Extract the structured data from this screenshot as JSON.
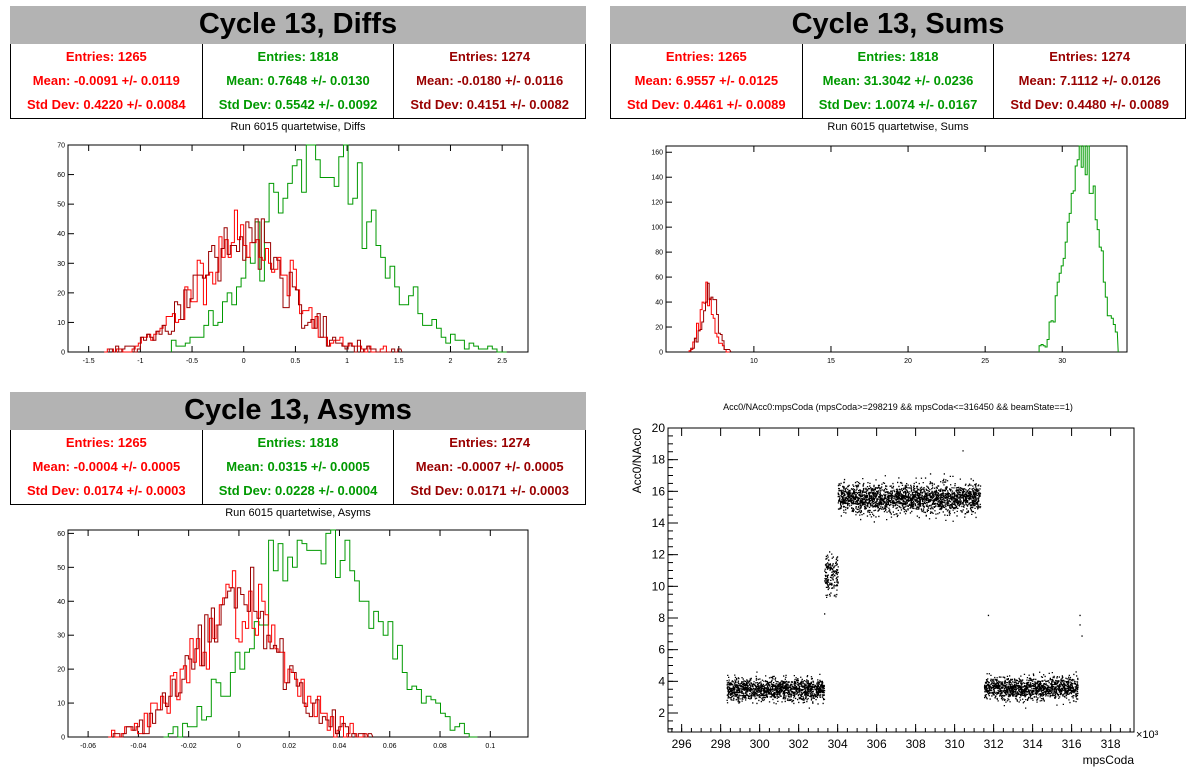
{
  "colors": {
    "red": "#ff0000",
    "green": "#009900",
    "darkred": "#990000",
    "title_bg": "#b3b3b3"
  },
  "panels": {
    "diffs": {
      "title": "Cycle 13, Diffs",
      "subtitle": "Run 6015 quartetwise, Diffs",
      "stats": [
        {
          "entries": "Entries: 1265",
          "mean": "Mean: -0.0091 +/- 0.0119",
          "std": "Std Dev: 0.4220 +/- 0.0084"
        },
        {
          "entries": "Entries: 1818",
          "mean": "Mean: 0.7648 +/- 0.0130",
          "std": "Std Dev: 0.5542 +/- 0.0092"
        },
        {
          "entries": "Entries: 1274",
          "mean": "Mean: -0.0180 +/- 0.0116",
          "std": "Std Dev: 0.4151 +/- 0.0082"
        }
      ]
    },
    "sums": {
      "title": "Cycle 13, Sums",
      "subtitle": "Run 6015 quartetwise, Sums",
      "stats": [
        {
          "entries": "Entries: 1265",
          "mean": "Mean: 6.9557 +/- 0.0125",
          "std": "Std Dev: 0.4461 +/- 0.0089"
        },
        {
          "entries": "Entries: 1818",
          "mean": "Mean: 31.3042 +/- 0.0236",
          "std": "Std Dev: 1.0074 +/- 0.0167"
        },
        {
          "entries": "Entries: 1274",
          "mean": "Mean: 7.1112 +/- 0.0126",
          "std": "Std Dev: 0.4480 +/- 0.0089"
        }
      ]
    },
    "asyms": {
      "title": "Cycle 13, Asyms",
      "subtitle": "Run 6015 quartetwise, Asyms",
      "stats": [
        {
          "entries": "Entries: 1265",
          "mean": "Mean: -0.0004 +/- 0.0005",
          "std": "Std Dev: 0.0174 +/- 0.0003"
        },
        {
          "entries": "Entries: 1818",
          "mean": "Mean: 0.0315 +/- 0.0005",
          "std": "Std Dev: 0.0228 +/- 0.0004"
        },
        {
          "entries": "Entries: 1274",
          "mean": "Mean: -0.0007 +/- 0.0005",
          "std": "Std Dev: 0.0171 +/- 0.0003"
        }
      ]
    },
    "scatter": {
      "title": "Acc0/NAcc0:mpsCoda (mpsCoda>=298219 && mpsCoda<=316450 && beamState==1)"
    }
  },
  "chart_data": [
    {
      "id": "diffs",
      "type": "histogram-overlay",
      "xlim": [
        -1.7,
        2.75
      ],
      "ylim": [
        0,
        70
      ],
      "xticks": [
        -1.5,
        -1,
        -0.5,
        0,
        0.5,
        1,
        1.5,
        2,
        2.5
      ],
      "xtick_labels": [
        "-1.5",
        "-1",
        "-0.5",
        "0",
        "0.5",
        "1",
        "1.5",
        "2",
        "2.5"
      ],
      "yticks": [
        0,
        10,
        20,
        30,
        40,
        50,
        60,
        70
      ],
      "ytick_labels": [
        "0",
        "10",
        "20",
        "30",
        "40",
        "50",
        "60",
        "70"
      ],
      "series": [
        {
          "color": "red",
          "gauss": {
            "mean": -0.0091,
            "std": 0.422,
            "peak": 40,
            "lo": -1.35,
            "hi": 1.4,
            "bin": 0.03
          }
        },
        {
          "color": "green",
          "gauss": {
            "mean": 0.7648,
            "std": 0.5542,
            "peak": 64,
            "lo": -0.7,
            "hi": 2.5,
            "bin": 0.045
          }
        },
        {
          "color": "darkred",
          "gauss": {
            "mean": -0.018,
            "std": 0.4151,
            "peak": 41,
            "lo": -1.3,
            "hi": 1.5,
            "bin": 0.03
          }
        }
      ]
    },
    {
      "id": "sums",
      "type": "histogram-overlay",
      "xlim": [
        4.3,
        34.2
      ],
      "ylim": [
        0,
        165
      ],
      "xticks": [
        10,
        15,
        20,
        25,
        30
      ],
      "xtick_labels": [
        "10",
        "15",
        "20",
        "25",
        "30"
      ],
      "yticks": [
        0,
        20,
        40,
        60,
        80,
        100,
        120,
        140,
        160
      ],
      "ytick_labels": [
        "0",
        "20",
        "40",
        "60",
        "80",
        "100",
        "120",
        "140",
        "160"
      ],
      "series": [
        {
          "color": "red",
          "gauss": {
            "mean": 6.9557,
            "std": 0.4461,
            "peak": 46,
            "lo": 5.8,
            "hi": 8.3,
            "bin": 0.12
          }
        },
        {
          "color": "green",
          "gauss": {
            "mean": 31.3042,
            "std": 1.0074,
            "peak": 155,
            "lo": 28.5,
            "hi": 33.5,
            "bin": 0.13
          }
        },
        {
          "color": "darkred",
          "gauss": {
            "mean": 7.1112,
            "std": 0.448,
            "peak": 46,
            "lo": 5.9,
            "hi": 8.4,
            "bin": 0.12
          }
        }
      ]
    },
    {
      "id": "asyms",
      "type": "histogram-overlay",
      "xlim": [
        -0.068,
        0.115
      ],
      "ylim": [
        0,
        61
      ],
      "xticks": [
        -0.06,
        -0.04,
        -0.02,
        0,
        0.02,
        0.04,
        0.06,
        0.08,
        0.1
      ],
      "xtick_labels": [
        "-0.06",
        "-0.04",
        "-0.02",
        "0",
        "0.02",
        "0.04",
        "0.06",
        "0.08",
        "0.1"
      ],
      "yticks": [
        0,
        10,
        20,
        30,
        40,
        50,
        60
      ],
      "ytick_labels": [
        "0",
        "10",
        "20",
        "30",
        "40",
        "50",
        "60"
      ],
      "series": [
        {
          "color": "red",
          "gauss": {
            "mean": -0.0004,
            "std": 0.0174,
            "peak": 39,
            "lo": -0.052,
            "hi": 0.05,
            "bin": 0.0013
          }
        },
        {
          "color": "green",
          "gauss": {
            "mean": 0.0315,
            "std": 0.0228,
            "peak": 57,
            "lo": -0.03,
            "hi": 0.093,
            "bin": 0.0019
          }
        },
        {
          "color": "darkred",
          "gauss": {
            "mean": -0.0007,
            "std": 0.0171,
            "peak": 40,
            "lo": -0.05,
            "hi": 0.052,
            "bin": 0.0013
          }
        }
      ]
    },
    {
      "id": "scatter",
      "type": "scatter",
      "title": "Acc0/NAcc0:mpsCoda (mpsCoda>=298219 && mpsCoda<=316450 && beamState==1)",
      "xlabel": "mpsCoda",
      "ylabel": "Acc0/NAcc0",
      "x_multiplier": "×10³",
      "xlim": [
        295.3,
        319.2
      ],
      "ylim": [
        0.8,
        20
      ],
      "xticks": [
        296,
        298,
        300,
        302,
        304,
        306,
        308,
        310,
        312,
        314,
        316,
        318
      ],
      "xtick_labels": [
        "296",
        "298",
        "300",
        "302",
        "304",
        "306",
        "308",
        "310",
        "312",
        "314",
        "316",
        "318"
      ],
      "yticks": [
        2,
        4,
        6,
        8,
        10,
        12,
        14,
        16,
        18,
        20
      ],
      "ytick_labels": [
        "2",
        "4",
        "6",
        "8",
        "10",
        "12",
        "14",
        "16",
        "18",
        "20"
      ],
      "clusters": [
        {
          "x": [
            298.3,
            303.3
          ],
          "y_center": 3.5,
          "y_spread": 0.35,
          "density": 1400
        },
        {
          "x": [
            303.3,
            304.0
          ],
          "y_center": 10.8,
          "y_spread": 0.6,
          "density": 160
        },
        {
          "x": [
            304.0,
            311.3
          ],
          "y_center": 15.6,
          "y_spread": 0.45,
          "density": 2200
        },
        {
          "x": [
            311.5,
            316.3
          ],
          "y_center": 3.6,
          "y_spread": 0.35,
          "density": 1300
        }
      ]
    }
  ]
}
